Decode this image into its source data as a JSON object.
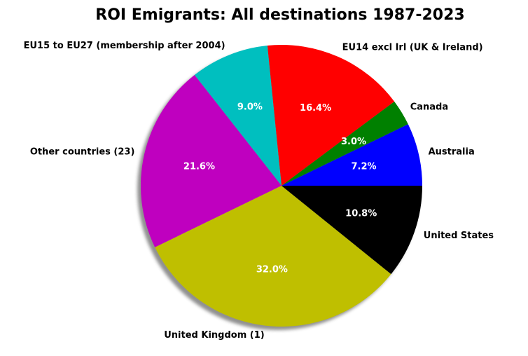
{
  "chart_data": {
    "type": "pie",
    "title": "ROI Emigrants: All destinations 1987-2023",
    "shadow": true,
    "start_angle_deg": 0,
    "direction": "counterclockwise",
    "slices": [
      {
        "label": "Australia",
        "value": 7.2,
        "pct_label": "7.2%",
        "color": "#0000ff"
      },
      {
        "label": "Canada",
        "value": 3.0,
        "pct_label": "3.0%",
        "color": "#008000"
      },
      {
        "label": "EU14 excl Irl (UK & Ireland)",
        "value": 16.4,
        "pct_label": "16.4%",
        "color": "#ff0000"
      },
      {
        "label": "EU15 to EU27 (membership after 2004)",
        "value": 9.0,
        "pct_label": "9.0%",
        "color": "#00bfbf"
      },
      {
        "label": "Other countries (23)",
        "value": 21.6,
        "pct_label": "21.6%",
        "color": "#bf00bf"
      },
      {
        "label": "United Kingdom (1)",
        "value": 32.0,
        "pct_label": "32.0%",
        "color": "#bfbf00"
      },
      {
        "label": "United States",
        "value": 10.8,
        "pct_label": "10.8%",
        "color": "#000000"
      }
    ]
  }
}
